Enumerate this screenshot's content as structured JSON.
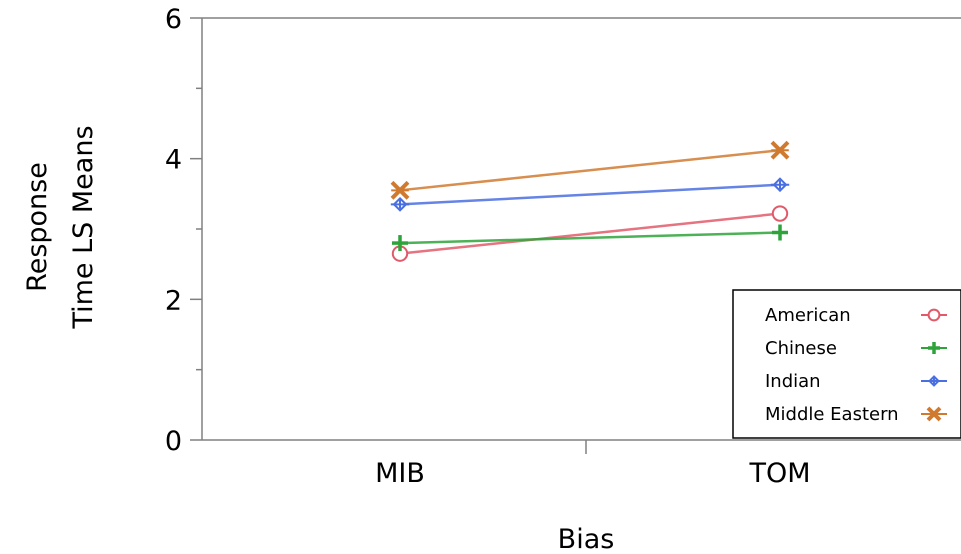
{
  "chart_data": {
    "type": "line",
    "xlabel": "Bias",
    "ylabel_lines": [
      "Response",
      "Time LS Means"
    ],
    "categories": [
      "MIB",
      "TOM"
    ],
    "ylim": [
      0,
      6
    ],
    "yticks": [
      "0",
      "2",
      "4",
      "6"
    ],
    "grid": false,
    "legend_position": "bottom-right",
    "series": [
      {
        "name": "American",
        "values": [
          2.65,
          3.22
        ],
        "color": "#e05a6a",
        "marker": "circle-open"
      },
      {
        "name": "Chinese",
        "values": [
          2.8,
          2.95
        ],
        "color": "#2ea33a",
        "marker": "plus"
      },
      {
        "name": "Indian",
        "values": [
          3.35,
          3.63
        ],
        "color": "#4a6fe0",
        "marker": "diamond-plus"
      },
      {
        "name": "Middle Eastern",
        "values": [
          3.55,
          4.12
        ],
        "color": "#d07a30",
        "marker": "x-star"
      }
    ]
  }
}
